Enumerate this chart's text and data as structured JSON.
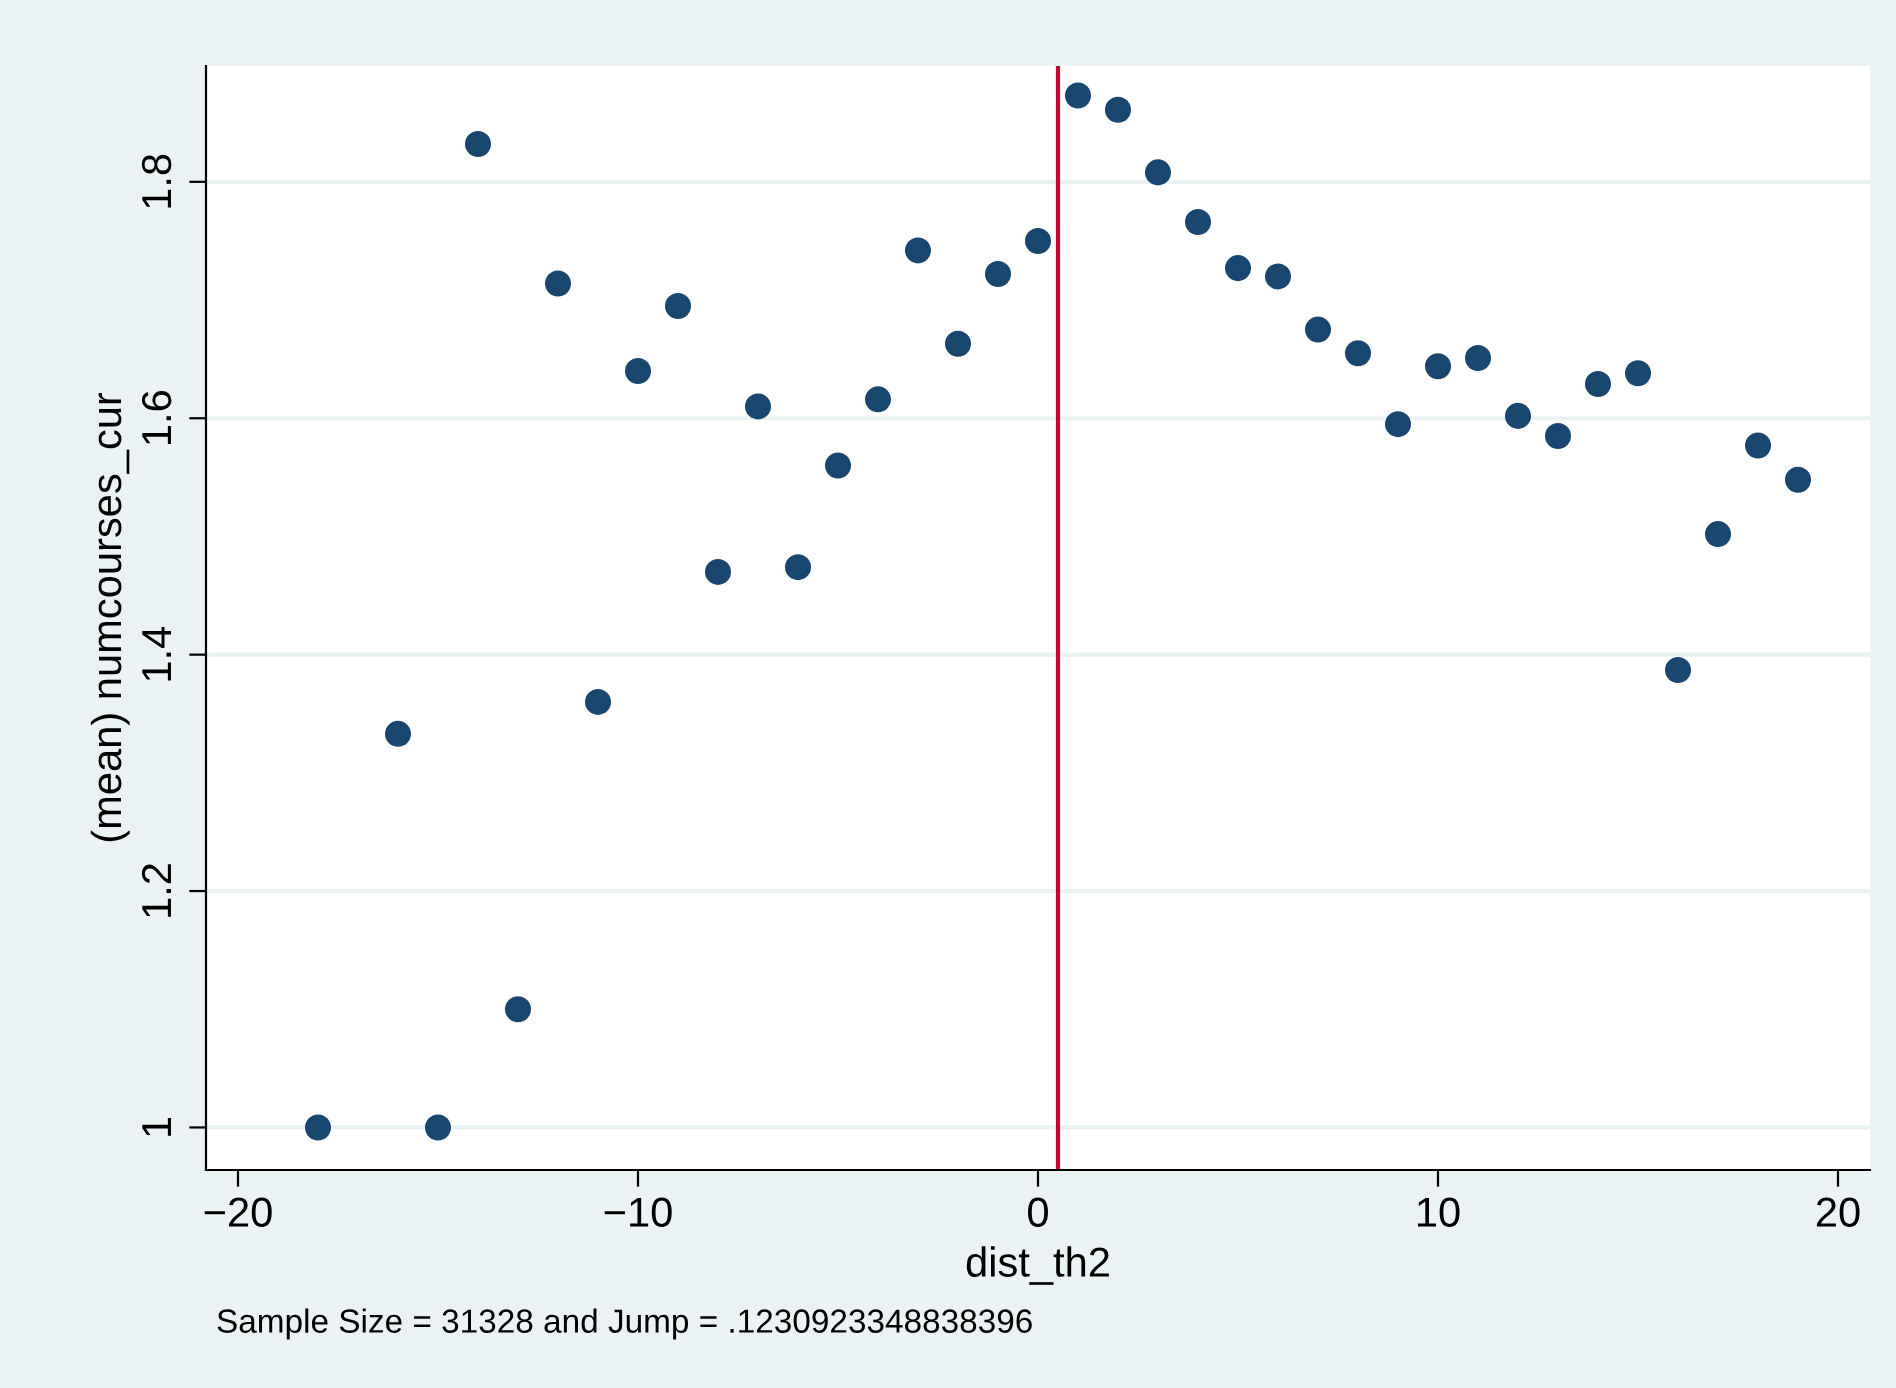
{
  "chart_data": {
    "type": "scatter",
    "xlabel": "dist_th2",
    "ylabel": "(mean) numcourses_cur",
    "x": [
      -18,
      -16,
      -15,
      -14,
      -13,
      -12,
      -11,
      -10,
      -9,
      -8,
      -7,
      -6,
      -5,
      -4,
      -3,
      -2,
      -1,
      0,
      1,
      2,
      3,
      4,
      5,
      6,
      7,
      8,
      9,
      10,
      11,
      12,
      13,
      14,
      15,
      16,
      17,
      18,
      19
    ],
    "series": [
      {
        "color": "#1a476f",
        "values": [
          1.0,
          1.333,
          1.0,
          1.832,
          1.1,
          1.714,
          1.36,
          1.64,
          1.695,
          1.47,
          1.61,
          1.474,
          1.56,
          1.616,
          1.742,
          1.663,
          1.722,
          1.75,
          1.873,
          1.861,
          1.808,
          1.766,
          1.727,
          1.72,
          1.675,
          1.655,
          1.595,
          1.644,
          1.651,
          1.602,
          1.585,
          1.629,
          1.638,
          1.387,
          1.502,
          1.577,
          1.548
        ]
      }
    ],
    "marker": "circle",
    "xlim": [
      -20.8,
      20.8
    ],
    "ylim": [
      0.964,
      1.898
    ],
    "xticks": [
      {
        "value": -20,
        "label": "−20"
      },
      {
        "value": -10,
        "label": "−10"
      },
      0,
      10,
      20
    ],
    "yticks": [
      1,
      1.2,
      1.4,
      1.6,
      1.8
    ],
    "grid": "y",
    "ref_lines": [
      {
        "axis": "x",
        "value": 0.5,
        "color": "#c10534",
        "line_style": "solid"
      }
    ],
    "annotations": [
      "Sample Size = 31328 and Jump = .1230923348838396"
    ]
  }
}
